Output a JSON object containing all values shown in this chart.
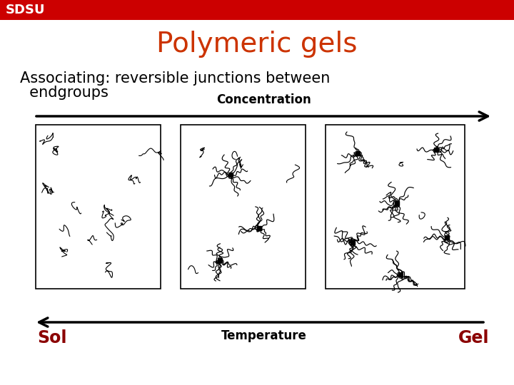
{
  "title": "Polymeric gels",
  "title_color": "#CC3300",
  "title_fontsize": 28,
  "subtitle_line1": "Associating: reversible junctions between",
  "subtitle_line2": "  endgroups",
  "subtitle_fontsize": 15,
  "subtitle_color": "#000000",
  "header_bar_color": "#CC0000",
  "header_text": "SDSU",
  "header_text_color": "#FFFFFF",
  "conc_label": "Concentration",
  "temp_label": "Temperature",
  "sol_label": "Sol",
  "gel_label": "Gel",
  "sol_gel_color": "#8B0000",
  "arrow_color": "#000000",
  "bg_color": "#FFFFFF",
  "box_edge_color": "#000000",
  "fig_width": 7.2,
  "fig_height": 5.4,
  "dpi": 100
}
